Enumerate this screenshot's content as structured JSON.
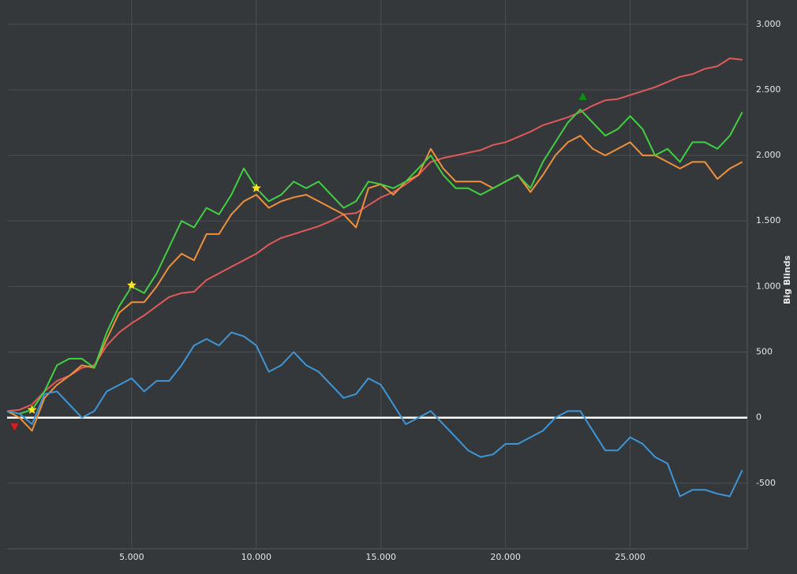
{
  "chart_data": {
    "type": "line",
    "y_label": "Big Blinds",
    "xlim": [
      0,
      29700
    ],
    "ylim": [
      -1000,
      3185
    ],
    "xticks": [
      {
        "value": 5000,
        "label": "5.000"
      },
      {
        "value": 10000,
        "label": "10.000"
      },
      {
        "value": 15000,
        "label": "15.000"
      },
      {
        "value": 20000,
        "label": "20.000"
      },
      {
        "value": 25000,
        "label": "25.000"
      }
    ],
    "yticks": [
      -500,
      0,
      500,
      {
        "value": 1000,
        "label": "1.000"
      },
      {
        "value": 1500,
        "label": "1.500"
      },
      {
        "value": 2000,
        "label": "2.000"
      },
      {
        "value": 2500,
        "label": "2.500"
      },
      {
        "value": 3000,
        "label": "3.000"
      }
    ],
    "grid": true,
    "x": [
      0,
      500,
      1000,
      1500,
      2000,
      2500,
      3000,
      3500,
      4000,
      4500,
      5000,
      5500,
      6000,
      6500,
      7000,
      7500,
      8000,
      8500,
      9000,
      9500,
      10000,
      10500,
      11000,
      11500,
      12000,
      12500,
      13000,
      13500,
      14000,
      14500,
      15000,
      15500,
      16000,
      16500,
      17000,
      17500,
      18000,
      18500,
      19000,
      19500,
      20000,
      20500,
      21000,
      21500,
      22000,
      22500,
      23000,
      23500,
      24000,
      24500,
      25000,
      25500,
      26000,
      26500,
      27000,
      27500,
      28000,
      28500,
      29000,
      29500
    ],
    "series": [
      {
        "color": "#e05a5a",
        "values": [
          50,
          60,
          100,
          200,
          280,
          320,
          380,
          400,
          550,
          650,
          720,
          780,
          850,
          920,
          950,
          960,
          1050,
          1100,
          1150,
          1200,
          1250,
          1320,
          1370,
          1400,
          1430,
          1460,
          1500,
          1550,
          1560,
          1620,
          1680,
          1720,
          1780,
          1850,
          1950,
          1980,
          2000,
          2020,
          2040,
          2080,
          2100,
          2140,
          2180,
          2230,
          2260,
          2290,
          2330,
          2380,
          2420,
          2430,
          2460,
          2490,
          2520,
          2560,
          2600,
          2620,
          2660,
          2680,
          2740,
          2730
        ]
      },
      {
        "color": "#f0903a",
        "values": [
          50,
          0,
          -100,
          150,
          250,
          320,
          400,
          380,
          600,
          800,
          880,
          880,
          1000,
          1150,
          1250,
          1200,
          1400,
          1400,
          1550,
          1650,
          1700,
          1600,
          1650,
          1680,
          1700,
          1650,
          1600,
          1550,
          1450,
          1750,
          1780,
          1700,
          1800,
          1850,
          2050,
          1900,
          1800,
          1800,
          1800,
          1750,
          1800,
          1850,
          1720,
          1850,
          2000,
          2100,
          2150,
          2050,
          2000,
          2050,
          2100,
          2000,
          2000,
          1950,
          1900,
          1950,
          1950,
          1820,
          1900,
          1950
        ]
      },
      {
        "color": "#40d040",
        "values": [
          50,
          30,
          60,
          200,
          400,
          450,
          450,
          380,
          650,
          850,
          1000,
          950,
          1100,
          1300,
          1500,
          1450,
          1600,
          1550,
          1700,
          1900,
          1750,
          1650,
          1700,
          1800,
          1750,
          1800,
          1700,
          1600,
          1650,
          1800,
          1780,
          1750,
          1800,
          1900,
          2000,
          1850,
          1750,
          1750,
          1700,
          1750,
          1800,
          1850,
          1750,
          1950,
          2100,
          2250,
          2350,
          2250,
          2150,
          2200,
          2300,
          2200,
          2000,
          2050,
          1950,
          2100,
          2100,
          2050,
          2150,
          2330
        ]
      },
      {
        "color": "#3c96d8",
        "values": [
          50,
          30,
          -50,
          180,
          200,
          100,
          0,
          50,
          200,
          250,
          300,
          200,
          280,
          280,
          400,
          550,
          600,
          550,
          650,
          620,
          550,
          350,
          400,
          500,
          400,
          350,
          250,
          150,
          180,
          300,
          250,
          100,
          -50,
          0,
          50,
          -50,
          -150,
          -250,
          -300,
          -280,
          -200,
          -200,
          -150,
          -100,
          0,
          50,
          50,
          -100,
          -250,
          -250,
          -150,
          -200,
          -300,
          -350,
          -600,
          -550,
          -550,
          -580,
          -600,
          -400
        ]
      }
    ],
    "markers": [
      {
        "x": 300,
        "y": -70,
        "shape": "triangle-down",
        "color": "#d02020"
      },
      {
        "x": 1000,
        "y": 60,
        "shape": "star",
        "color": "#f5e62a"
      },
      {
        "x": 5000,
        "y": 1010,
        "shape": "star",
        "color": "#f5e62a"
      },
      {
        "x": 10000,
        "y": 1750,
        "shape": "star",
        "color": "#f5e62a"
      },
      {
        "x": 23100,
        "y": 2450,
        "shape": "triangle-up",
        "color": "#108a10"
      }
    ]
  }
}
